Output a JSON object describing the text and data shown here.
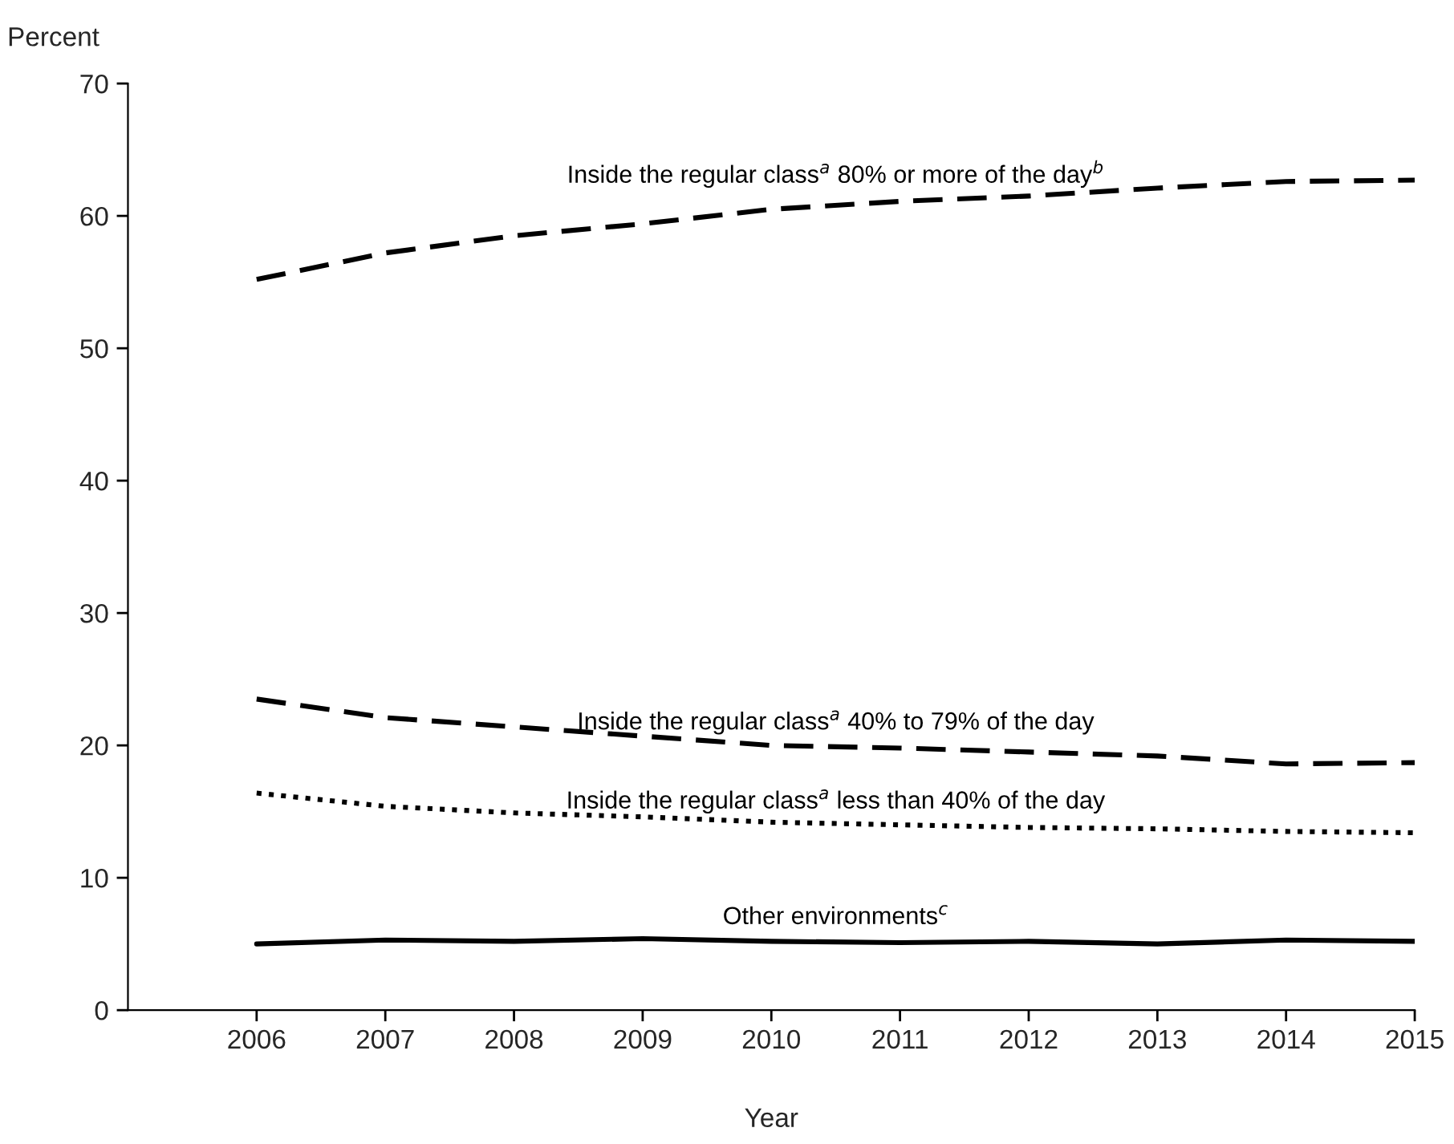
{
  "chart_data": {
    "type": "line",
    "ylabel": "Percent",
    "xlabel": "Year",
    "x": [
      2006,
      2007,
      2008,
      2009,
      2010,
      2011,
      2012,
      2013,
      2014,
      2015
    ],
    "xlim": [
      2005,
      2015
    ],
    "xticks": [
      2006,
      2007,
      2008,
      2009,
      2010,
      2011,
      2012,
      2013,
      2014,
      2015
    ],
    "ylim": [
      0,
      70
    ],
    "yticks": [
      0,
      10,
      20,
      30,
      40,
      50,
      60,
      70
    ],
    "grid": false,
    "legend": false,
    "marker": "none",
    "series": [
      {
        "name": "Inside the regular class$^{a}$ 80% or more of the day$^{b}$",
        "color": "#000000",
        "line_style": "dashed",
        "values": [
          55.2,
          57.2,
          58.5,
          59.4,
          60.5,
          61.1,
          61.5,
          62.1,
          62.6,
          62.7
        ]
      },
      {
        "name": "Inside the regular class$^{a}$ 40% to 79% of the day",
        "color": "#000000",
        "line_style": "dashed",
        "values": [
          23.5,
          22.1,
          21.4,
          20.7,
          20.0,
          19.8,
          19.5,
          19.2,
          18.6,
          18.7
        ]
      },
      {
        "name": "Inside the regular class$^{a}$ less than 40% of the day",
        "color": "#000000",
        "line_style": "dotted",
        "values": [
          16.4,
          15.4,
          14.9,
          14.6,
          14.2,
          14.0,
          13.8,
          13.7,
          13.5,
          13.4
        ]
      },
      {
        "name": "Other environments$^{c}$",
        "color": "#000000",
        "line_style": "solid",
        "values": [
          5.0,
          5.3,
          5.2,
          5.4,
          5.2,
          5.1,
          5.2,
          5.0,
          5.3,
          5.2
        ]
      }
    ]
  }
}
